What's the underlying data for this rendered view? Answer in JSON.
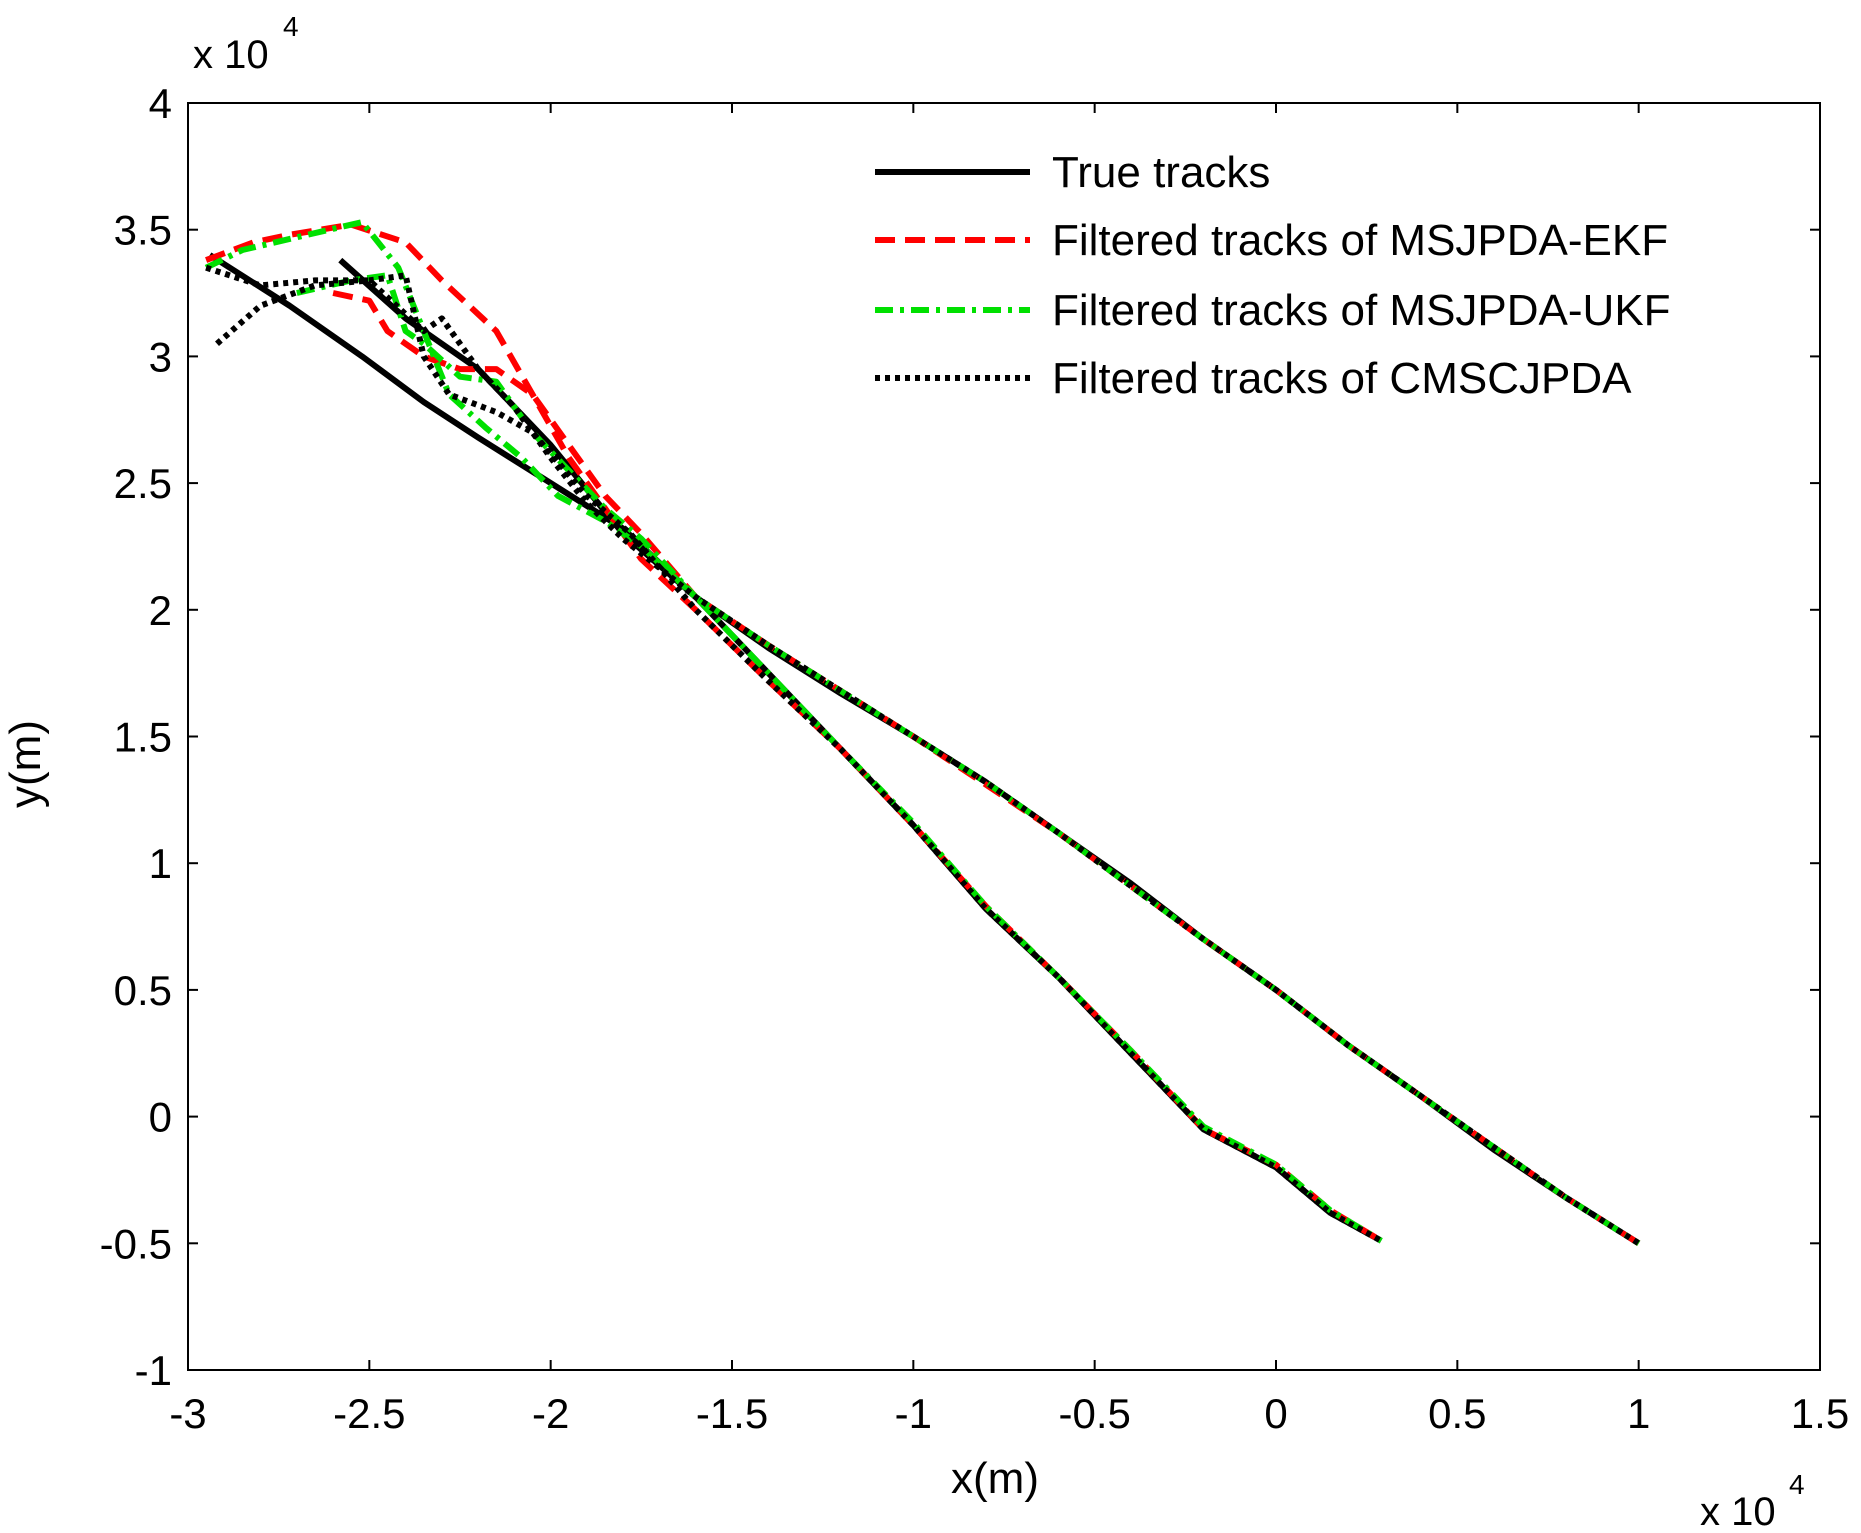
{
  "chart_data": {
    "type": "line",
    "title": "",
    "xlabel": "x(m)",
    "ylabel": "y(m)",
    "x_scale_factor": "x 10",
    "x_scale_exponent": "4",
    "y_scale_factor": "x 10",
    "y_scale_exponent": "4",
    "xlim": [
      -3,
      1.5
    ],
    "ylim": [
      -1,
      4
    ],
    "x_ticks": [
      -3,
      -2.5,
      -2,
      -1.5,
      -1,
      -0.5,
      0,
      0.5,
      1,
      1.5
    ],
    "x_tick_labels": [
      "-3",
      "-2.5",
      "-2",
      "-1.5",
      "-1",
      "-0.5",
      "0",
      "0.5",
      "1",
      "1.5"
    ],
    "y_ticks": [
      -1,
      -0.5,
      0,
      0.5,
      1,
      1.5,
      2,
      2.5,
      3,
      3.5,
      4
    ],
    "y_tick_labels": [
      "-1",
      "-0.5",
      "0",
      "0.5",
      "1",
      "1.5",
      "2",
      "2.5",
      "3",
      "3.5",
      "4"
    ],
    "grid": false,
    "legend_position": "top-right",
    "series": [
      {
        "name": "True tracks",
        "color": "#000000",
        "style": "solid",
        "tracks": [
          {
            "x": [
              -2.94,
              -2.72,
              -2.52,
              -2.35,
              -2.2,
              -2.0,
              -1.8,
              -1.6,
              -1.4,
              -1.2,
              -1.0,
              -0.8,
              -0.6,
              -0.4,
              -0.2,
              0.0,
              0.15,
              0.29
            ],
            "y": [
              3.4,
              3.2,
              3.0,
              2.82,
              2.68,
              2.5,
              2.32,
              2.05,
              1.75,
              1.45,
              1.15,
              0.82,
              0.55,
              0.25,
              -0.05,
              -0.2,
              -0.38,
              -0.49
            ]
          },
          {
            "x": [
              -2.58,
              -2.4,
              -2.2,
              -2.0,
              -1.8,
              -1.6,
              -1.4,
              -1.2,
              -1.0,
              -0.8,
              -0.6,
              -0.4,
              -0.2,
              0.0,
              0.2,
              0.4,
              0.6,
              0.8,
              1.0
            ],
            "y": [
              3.38,
              3.15,
              2.95,
              2.65,
              2.3,
              2.05,
              1.85,
              1.67,
              1.5,
              1.32,
              1.12,
              0.92,
              0.7,
              0.5,
              0.28,
              0.08,
              -0.13,
              -0.32,
              -0.5
            ]
          }
        ]
      },
      {
        "name": "Filtered tracks of MSJPDA-EKF",
        "color": "#ff0000",
        "style": "dashed",
        "tracks": [
          {
            "x": [
              -2.95,
              -2.82,
              -2.72,
              -2.55,
              -2.4,
              -2.3,
              -2.15,
              -2.05,
              -1.95,
              -1.85,
              -1.75,
              -1.6,
              -1.4,
              -1.2,
              -1.0,
              -0.8,
              -0.6,
              -0.4,
              -0.2,
              0.0,
              0.15,
              0.29
            ],
            "y": [
              3.38,
              3.45,
              3.48,
              3.52,
              3.45,
              3.3,
              3.1,
              2.85,
              2.6,
              2.4,
              2.2,
              2.0,
              1.72,
              1.45,
              1.15,
              0.83,
              0.55,
              0.26,
              -0.05,
              -0.19,
              -0.37,
              -0.49
            ]
          },
          {
            "x": [
              -2.6,
              -2.5,
              -2.45,
              -2.35,
              -2.25,
              -2.15,
              -2.05,
              -1.95,
              -1.85,
              -1.75,
              -1.6,
              -1.4,
              -1.2,
              -1.0,
              -0.8,
              -0.6,
              -0.4,
              -0.2,
              0.0,
              0.2,
              0.4,
              0.6,
              0.8,
              1.0
            ],
            "y": [
              3.25,
              3.22,
              3.1,
              3.0,
              2.95,
              2.95,
              2.85,
              2.65,
              2.45,
              2.3,
              2.05,
              1.86,
              1.68,
              1.5,
              1.31,
              1.12,
              0.91,
              0.7,
              0.5,
              0.28,
              0.08,
              -0.12,
              -0.32,
              -0.5
            ]
          }
        ]
      },
      {
        "name": "Filtered tracks of MSJPDA-UKF",
        "color": "#00e000",
        "style": "dashdot",
        "tracks": [
          {
            "x": [
              -2.95,
              -2.85,
              -2.7,
              -2.52,
              -2.42,
              -2.35,
              -2.28,
              -2.18,
              -2.08,
              -1.98,
              -1.85,
              -1.75,
              -1.6,
              -1.4,
              -1.2,
              -1.0,
              -0.8,
              -0.6,
              -0.4,
              -0.2,
              0.0,
              0.15,
              0.29
            ],
            "y": [
              3.35,
              3.42,
              3.47,
              3.53,
              3.35,
              3.1,
              2.85,
              2.72,
              2.6,
              2.45,
              2.35,
              2.25,
              2.05,
              1.75,
              1.45,
              1.16,
              0.83,
              0.55,
              0.26,
              -0.04,
              -0.19,
              -0.37,
              -0.49
            ]
          },
          {
            "x": [
              -2.7,
              -2.55,
              -2.45,
              -2.4,
              -2.35,
              -2.25,
              -2.15,
              -2.05,
              -1.95,
              -1.85,
              -1.75,
              -1.6,
              -1.4,
              -1.2,
              -1.0,
              -0.8,
              -0.6,
              -0.4,
              -0.2,
              0.0,
              0.2,
              0.4,
              0.6,
              0.8,
              1.0
            ],
            "y": [
              3.25,
              3.3,
              3.32,
              3.1,
              3.05,
              2.92,
              2.9,
              2.7,
              2.55,
              2.4,
              2.28,
              2.05,
              1.86,
              1.68,
              1.5,
              1.32,
              1.12,
              0.91,
              0.7,
              0.5,
              0.28,
              0.08,
              -0.12,
              -0.32,
              -0.5
            ]
          }
        ]
      },
      {
        "name": "Filtered tracks of CMSCJPDA",
        "color": "#000000",
        "style": "dotted",
        "tracks": [
          {
            "x": [
              -2.92,
              -2.8,
              -2.65,
              -2.5,
              -2.4,
              -2.35,
              -2.28,
              -2.15,
              -2.05,
              -1.9,
              -1.78,
              -1.6,
              -1.4,
              -1.2,
              -1.0,
              -0.8,
              -0.6,
              -0.4,
              -0.2,
              0.0,
              0.15,
              0.29
            ],
            "y": [
              3.05,
              3.2,
              3.28,
              3.3,
              3.32,
              3.0,
              2.85,
              2.78,
              2.7,
              2.45,
              2.3,
              2.0,
              1.72,
              1.45,
              1.15,
              0.82,
              0.55,
              0.25,
              -0.05,
              -0.2,
              -0.38,
              -0.49
            ]
          },
          {
            "x": [
              -2.95,
              -2.8,
              -2.65,
              -2.5,
              -2.35,
              -2.3,
              -2.2,
              -2.1,
              -2.0,
              -1.9,
              -1.8,
              -1.6,
              -1.4,
              -1.2,
              -1.0,
              -0.8,
              -0.6,
              -0.4,
              -0.2,
              0.0,
              0.2,
              0.4,
              0.6,
              0.8,
              1.0
            ],
            "y": [
              3.35,
              3.28,
              3.3,
              3.3,
              3.1,
              3.15,
              2.95,
              2.8,
              2.6,
              2.42,
              2.28,
              2.05,
              1.86,
              1.68,
              1.5,
              1.32,
              1.12,
              0.91,
              0.7,
              0.5,
              0.28,
              0.08,
              -0.12,
              -0.32,
              -0.5
            ]
          }
        ]
      }
    ]
  }
}
